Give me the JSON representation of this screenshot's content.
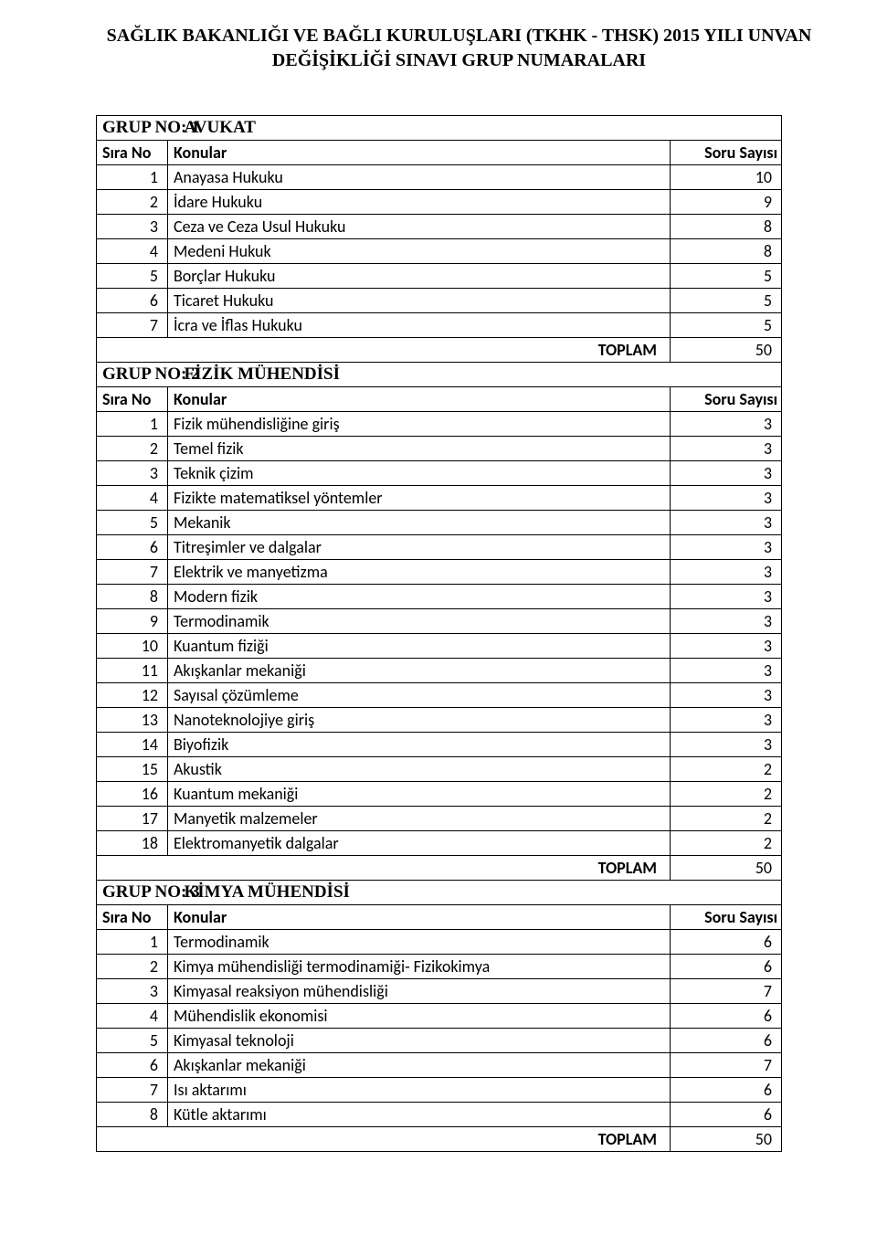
{
  "title_line1": "SAĞLIK BAKANLIĞI VE BAĞLI KURULUŞLARI (TKHK - THSK) 2015 YILI UNVAN",
  "title_line2": "DEĞİŞİKLİĞİ SINAVI GRUP NUMARALARI",
  "labels": {
    "sira_no": "Sıra No",
    "konular": "Konular",
    "soru_sayisi": "Soru Sayısı",
    "toplam": "TOPLAM"
  },
  "groups": [
    {
      "no_label": "GRUP NO: 1",
      "name": "AVUKAT",
      "rows": [
        {
          "n": "1",
          "topic": "Anayasa Hukuku",
          "cnt": "10"
        },
        {
          "n": "2",
          "topic": "İdare Hukuku",
          "cnt": "9"
        },
        {
          "n": "3",
          "topic": "Ceza ve Ceza Usul Hukuku",
          "cnt": "8"
        },
        {
          "n": "4",
          "topic": "Medeni Hukuk",
          "cnt": "8"
        },
        {
          "n": "5",
          "topic": "Borçlar Hukuku",
          "cnt": "5"
        },
        {
          "n": "6",
          "topic": "Ticaret Hukuku",
          "cnt": "5"
        },
        {
          "n": "7",
          "topic": "İcra ve İflas Hukuku",
          "cnt": "5"
        }
      ],
      "total": "50"
    },
    {
      "no_label": "GRUP NO: 2",
      "name": "FİZİK MÜHENDİSİ",
      "rows": [
        {
          "n": "1",
          "topic": "Fizik mühendisliğine giriş",
          "cnt": "3"
        },
        {
          "n": "2",
          "topic": "Temel fizik",
          "cnt": "3"
        },
        {
          "n": "3",
          "topic": "Teknik çizim",
          "cnt": "3"
        },
        {
          "n": "4",
          "topic": "Fizikte matematiksel yöntemler",
          "cnt": "3"
        },
        {
          "n": "5",
          "topic": "Mekanik",
          "cnt": "3"
        },
        {
          "n": "6",
          "topic": "Titreşimler ve dalgalar",
          "cnt": "3"
        },
        {
          "n": "7",
          "topic": "Elektrik ve manyetizma",
          "cnt": "3"
        },
        {
          "n": "8",
          "topic": "Modern fizik",
          "cnt": "3"
        },
        {
          "n": "9",
          "topic": "Termodinamik",
          "cnt": "3"
        },
        {
          "n": "10",
          "topic": "Kuantum fiziği",
          "cnt": "3"
        },
        {
          "n": "11",
          "topic": "Akışkanlar mekaniği",
          "cnt": "3"
        },
        {
          "n": "12",
          "topic": "Sayısal çözümleme",
          "cnt": "3"
        },
        {
          "n": "13",
          "topic": "Nanoteknolojiye giriş",
          "cnt": "3"
        },
        {
          "n": "14",
          "topic": "Biyofizik",
          "cnt": "3"
        },
        {
          "n": "15",
          "topic": "Akustik",
          "cnt": "2"
        },
        {
          "n": "16",
          "topic": "Kuantum mekaniği",
          "cnt": "2"
        },
        {
          "n": "17",
          "topic": "Manyetik malzemeler",
          "cnt": "2"
        },
        {
          "n": "18",
          "topic": "Elektromanyetik dalgalar",
          "cnt": "2"
        }
      ],
      "total": "50"
    },
    {
      "no_label": "GRUP NO: 3",
      "name": "KİMYA MÜHENDİSİ",
      "rows": [
        {
          "n": "1",
          "topic": "Termodinamik",
          "cnt": "6"
        },
        {
          "n": "2",
          "topic": "Kimya mühendisliği termodinamiği- Fizikokimya",
          "cnt": "6"
        },
        {
          "n": "3",
          "topic": "Kimyasal reaksiyon mühendisliği",
          "cnt": "7"
        },
        {
          "n": "4",
          "topic": "Mühendislik ekonomisi",
          "cnt": "6"
        },
        {
          "n": "5",
          "topic": "Kimyasal teknoloji",
          "cnt": "6"
        },
        {
          "n": "6",
          "topic": "Akışkanlar mekaniği",
          "cnt": "7"
        },
        {
          "n": "7",
          "topic": "Isı aktarımı",
          "cnt": "6"
        },
        {
          "n": "8",
          "topic": "Kütle aktarımı",
          "cnt": "6"
        }
      ],
      "total": "50"
    }
  ]
}
